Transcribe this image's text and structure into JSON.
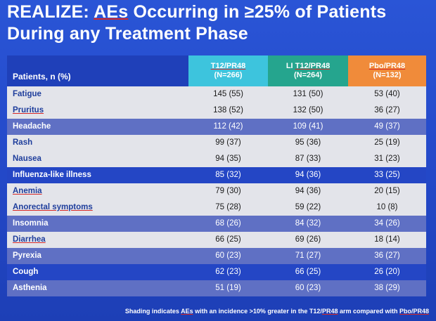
{
  "title": {
    "line1_prefix": "REALIZE: ",
    "line1_underlined": "AEs",
    "line1_suffix": " Occurring in ≥25% of Patients",
    "line2": "During any Treatment Phase"
  },
  "table": {
    "header_label": "Patients, n (%)",
    "columns": [
      {
        "name_prefix": "",
        "name": "T12/PR48",
        "n": "(N=266)",
        "color": "#3dc4dd"
      },
      {
        "name_prefix": "LI ",
        "name": "T12/PR48",
        "n": "(N=264)",
        "color": "#25a58e"
      },
      {
        "name_prefix": "",
        "name": "Pbo/PR48",
        "n": "(N=132)",
        "color": "#f08b3a"
      }
    ],
    "rows": [
      {
        "label": "Fatigue",
        "values": [
          "145 (55)",
          "131 (50)",
          "53 (40)"
        ]
      },
      {
        "label": "Pruritus",
        "values": [
          "138 (52)",
          "132 (50)",
          "36 (27)"
        ]
      },
      {
        "label": "Headache",
        "values": [
          "112 (42)",
          "109 (41)",
          "49 (37)"
        ]
      },
      {
        "label": "Rash",
        "values": [
          "99 (37)",
          "95 (36)",
          "25 (19)"
        ]
      },
      {
        "label": "Nausea",
        "values": [
          "94 (35)",
          "87 (33)",
          "31 (23)"
        ]
      },
      {
        "label": "Influenza-like illness",
        "values": [
          "85 (32)",
          "94 (36)",
          "33 (25)"
        ]
      },
      {
        "label": "Anemia",
        "values": [
          "79 (30)",
          "94 (36)",
          "20 (15)"
        ]
      },
      {
        "label": "Anorectal symptoms",
        "values": [
          "75 (28)",
          "59 (22)",
          "10 (8)"
        ]
      },
      {
        "label": "Insomnia",
        "values": [
          "68 (26)",
          "84 (32)",
          "34 (26)"
        ]
      },
      {
        "label": "Diarrhea",
        "values": [
          "66 (25)",
          "69 (26)",
          "18 (14)"
        ]
      },
      {
        "label": "Pyrexia",
        "values": [
          "60 (23)",
          "71 (27)",
          "36 (27)"
        ]
      },
      {
        "label": "Cough",
        "values": [
          "62 (23)",
          "66 (25)",
          "26 (20)"
        ]
      },
      {
        "label": "Asthenia",
        "values": [
          "51 (19)",
          "60 (23)",
          "38 (29)"
        ]
      }
    ]
  },
  "footnote": {
    "p1": "Shading indicates ",
    "u1": "AEs",
    "p2": " with an incidence >10% greater in the T12/",
    "u2": "PR48",
    "p3": " arm compared with ",
    "u3": "Pbo/PR48"
  }
}
